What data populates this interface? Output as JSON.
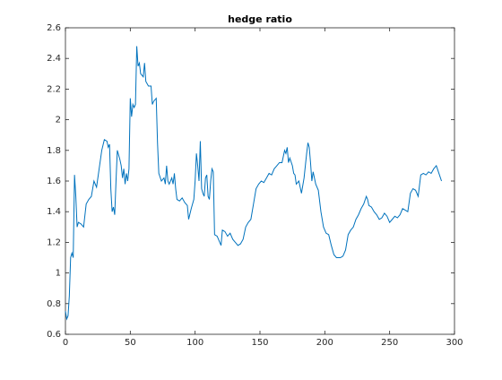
{
  "chart_data": {
    "type": "line",
    "title": "hedge ratio",
    "x": [
      0,
      1,
      2,
      3,
      4,
      5,
      6,
      7,
      8,
      9,
      10,
      12,
      14,
      16,
      18,
      20,
      22,
      24,
      26,
      28,
      30,
      32,
      33,
      34,
      35,
      36,
      37,
      38,
      39,
      40,
      42,
      43,
      44,
      45,
      46,
      47,
      48,
      49,
      50,
      51,
      52,
      53,
      54,
      55,
      56,
      57,
      58,
      60,
      61,
      62,
      64,
      66,
      67,
      68,
      70,
      71,
      72,
      74,
      76,
      77,
      78,
      79,
      80,
      82,
      83,
      84,
      85,
      86,
      88,
      90,
      92,
      94,
      95,
      97,
      99,
      100,
      101,
      102,
      103,
      104,
      105,
      106,
      107,
      108,
      109,
      110,
      111,
      112,
      113,
      114,
      115,
      117,
      119,
      120,
      121,
      123,
      125,
      127,
      129,
      131,
      133,
      135,
      137,
      139,
      141,
      143,
      145,
      147,
      149,
      151,
      153,
      155,
      157,
      159,
      161,
      163,
      165,
      167,
      169,
      170,
      171,
      172,
      173,
      175,
      176,
      177,
      178,
      180,
      182,
      184,
      186,
      187,
      188,
      189,
      190,
      191,
      193,
      195,
      197,
      199,
      201,
      203,
      205,
      207,
      209,
      212,
      214,
      216,
      218,
      220,
      222,
      224,
      226,
      228,
      230,
      232,
      233,
      234,
      236,
      238,
      240,
      242,
      244,
      246,
      248,
      250,
      252,
      254,
      256,
      258,
      260,
      262,
      264,
      266,
      268,
      270,
      272,
      274,
      276,
      278,
      280,
      282,
      284,
      286,
      288,
      290
    ],
    "series": [
      {
        "name": "hedge ratio",
        "color": "#0072bd",
        "values": [
          0.75,
          0.7,
          0.72,
          0.85,
          1.1,
          1.13,
          1.1,
          1.64,
          1.5,
          1.3,
          1.33,
          1.32,
          1.3,
          1.45,
          1.48,
          1.5,
          1.6,
          1.56,
          1.68,
          1.8,
          1.87,
          1.86,
          1.82,
          1.84,
          1.55,
          1.4,
          1.43,
          1.38,
          1.6,
          1.8,
          1.74,
          1.7,
          1.62,
          1.68,
          1.58,
          1.65,
          1.6,
          1.68,
          2.14,
          2.02,
          2.1,
          2.08,
          2.1,
          2.48,
          2.35,
          2.37,
          2.3,
          2.28,
          2.37,
          2.25,
          2.22,
          2.22,
          2.1,
          2.12,
          2.14,
          1.85,
          1.65,
          1.6,
          1.62,
          1.58,
          1.7,
          1.6,
          1.58,
          1.62,
          1.58,
          1.65,
          1.55,
          1.48,
          1.47,
          1.49,
          1.46,
          1.44,
          1.35,
          1.42,
          1.48,
          1.6,
          1.78,
          1.7,
          1.6,
          1.86,
          1.55,
          1.52,
          1.5,
          1.62,
          1.64,
          1.5,
          1.48,
          1.6,
          1.68,
          1.66,
          1.25,
          1.24,
          1.2,
          1.18,
          1.28,
          1.27,
          1.24,
          1.26,
          1.22,
          1.2,
          1.18,
          1.19,
          1.22,
          1.3,
          1.33,
          1.35,
          1.45,
          1.55,
          1.58,
          1.6,
          1.59,
          1.62,
          1.65,
          1.64,
          1.68,
          1.7,
          1.72,
          1.72,
          1.8,
          1.78,
          1.82,
          1.72,
          1.75,
          1.7,
          1.65,
          1.64,
          1.58,
          1.6,
          1.52,
          1.62,
          1.78,
          1.85,
          1.82,
          1.72,
          1.6,
          1.66,
          1.58,
          1.54,
          1.4,
          1.3,
          1.26,
          1.25,
          1.18,
          1.12,
          1.1,
          1.1,
          1.11,
          1.15,
          1.25,
          1.28,
          1.3,
          1.35,
          1.38,
          1.42,
          1.45,
          1.5,
          1.48,
          1.44,
          1.43,
          1.4,
          1.38,
          1.35,
          1.36,
          1.39,
          1.37,
          1.33,
          1.35,
          1.37,
          1.36,
          1.38,
          1.42,
          1.41,
          1.4,
          1.52,
          1.55,
          1.54,
          1.5,
          1.64,
          1.65,
          1.64,
          1.66,
          1.65,
          1.68,
          1.7,
          1.65,
          1.6
        ]
      }
    ],
    "xlim": [
      0,
      300
    ],
    "xticks": [
      0,
      50,
      100,
      150,
      200,
      250,
      300
    ],
    "ylim": [
      0.6,
      2.6
    ],
    "yticks": [
      0.6,
      0.8,
      1,
      1.2,
      1.4,
      1.6,
      1.8,
      2,
      2.2,
      2.4,
      2.6
    ]
  }
}
